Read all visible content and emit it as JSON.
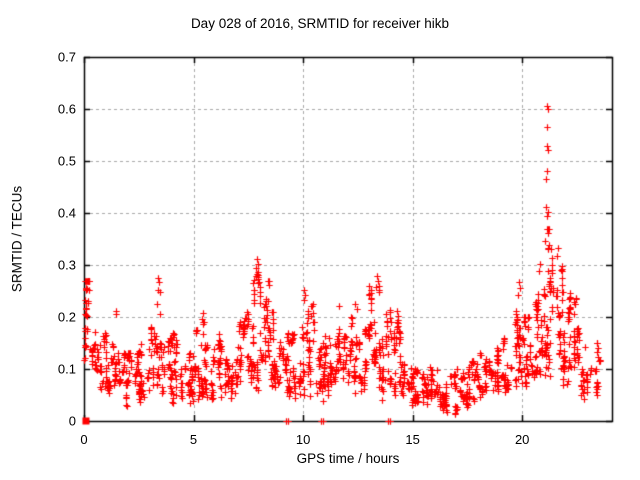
{
  "chart_data": {
    "type": "scatter",
    "title": "Day 028 of 2016, SRMTID for receiver hikb",
    "xlabel": "GPS time / hours",
    "ylabel": "SRMTID / TECUs",
    "xlim": [
      0,
      24.1
    ],
    "ylim": [
      0,
      0.7
    ],
    "xticks": [
      0,
      5,
      10,
      15,
      20
    ],
    "yticks": [
      0,
      0.1,
      0.2,
      0.3,
      0.4,
      0.5,
      0.6,
      0.7
    ],
    "grid": true,
    "legend": "none",
    "marker": "plus",
    "marker_color": "#ff0000",
    "grid_color": "#a8a8a8",
    "axis_color": "#000000",
    "background_color": "#ffffff",
    "seed": 20160128,
    "density_bins": [
      {
        "h0": 0.0,
        "h1": 0.25,
        "lo": 0.04,
        "hi": 0.27,
        "n": 28
      },
      {
        "h0": 0.25,
        "h1": 0.5,
        "lo": 0.09,
        "hi": 0.2,
        "n": 14
      },
      {
        "h0": 0.5,
        "h1": 1.0,
        "lo": 0.06,
        "hi": 0.17,
        "n": 34
      },
      {
        "h0": 1.0,
        "h1": 1.5,
        "lo": 0.06,
        "hi": 0.16,
        "n": 36
      },
      {
        "h0": 1.5,
        "h1": 2.0,
        "lo": 0.035,
        "hi": 0.13,
        "n": 36
      },
      {
        "h0": 2.0,
        "h1": 2.5,
        "lo": 0.05,
        "hi": 0.13,
        "n": 36
      },
      {
        "h0": 2.5,
        "h1": 3.0,
        "lo": 0.05,
        "hi": 0.16,
        "n": 36
      },
      {
        "h0": 3.0,
        "h1": 3.5,
        "lo": 0.06,
        "hi": 0.18,
        "n": 36
      },
      {
        "h0": 3.5,
        "h1": 4.0,
        "lo": 0.06,
        "hi": 0.16,
        "n": 36
      },
      {
        "h0": 4.0,
        "h1": 4.5,
        "lo": 0.05,
        "hi": 0.17,
        "n": 36
      },
      {
        "h0": 4.5,
        "h1": 5.0,
        "lo": 0.05,
        "hi": 0.14,
        "n": 36
      },
      {
        "h0": 5.0,
        "h1": 5.5,
        "lo": 0.06,
        "hi": 0.19,
        "n": 36
      },
      {
        "h0": 5.5,
        "h1": 6.0,
        "lo": 0.05,
        "hi": 0.15,
        "n": 36
      },
      {
        "h0": 6.0,
        "h1": 6.5,
        "lo": 0.06,
        "hi": 0.17,
        "n": 36
      },
      {
        "h0": 6.5,
        "h1": 7.0,
        "lo": 0.06,
        "hi": 0.18,
        "n": 36
      },
      {
        "h0": 7.0,
        "h1": 7.5,
        "lo": 0.07,
        "hi": 0.21,
        "n": 40
      },
      {
        "h0": 7.5,
        "h1": 8.0,
        "lo": 0.08,
        "hi": 0.29,
        "n": 46
      },
      {
        "h0": 8.0,
        "h1": 8.5,
        "lo": 0.08,
        "hi": 0.27,
        "n": 44
      },
      {
        "h0": 8.5,
        "h1": 9.0,
        "lo": 0.07,
        "hi": 0.21,
        "n": 40
      },
      {
        "h0": 9.0,
        "h1": 9.5,
        "lo": 0.06,
        "hi": 0.17,
        "n": 34
      },
      {
        "h0": 9.5,
        "h1": 10.0,
        "lo": 0.07,
        "hi": 0.18,
        "n": 36
      },
      {
        "h0": 10.0,
        "h1": 10.5,
        "lo": 0.07,
        "hi": 0.23,
        "n": 40
      },
      {
        "h0": 10.5,
        "h1": 11.0,
        "lo": 0.06,
        "hi": 0.19,
        "n": 36
      },
      {
        "h0": 11.0,
        "h1": 11.5,
        "lo": 0.06,
        "hi": 0.16,
        "n": 36
      },
      {
        "h0": 11.5,
        "h1": 12.0,
        "lo": 0.07,
        "hi": 0.18,
        "n": 36
      },
      {
        "h0": 12.0,
        "h1": 12.5,
        "lo": 0.06,
        "hi": 0.2,
        "n": 36
      },
      {
        "h0": 12.5,
        "h1": 13.0,
        "lo": 0.07,
        "hi": 0.19,
        "n": 38
      },
      {
        "h0": 13.0,
        "h1": 13.5,
        "lo": 0.08,
        "hi": 0.26,
        "n": 46
      },
      {
        "h0": 13.5,
        "h1": 14.0,
        "lo": 0.07,
        "hi": 0.22,
        "n": 40
      },
      {
        "h0": 14.0,
        "h1": 14.5,
        "lo": 0.06,
        "hi": 0.2,
        "n": 38
      },
      {
        "h0": 14.5,
        "h1": 15.0,
        "lo": 0.05,
        "hi": 0.13,
        "n": 34
      },
      {
        "h0": 15.0,
        "h1": 15.5,
        "lo": 0.04,
        "hi": 0.12,
        "n": 34
      },
      {
        "h0": 15.5,
        "h1": 16.0,
        "lo": 0.04,
        "hi": 0.11,
        "n": 34
      },
      {
        "h0": 16.0,
        "h1": 16.5,
        "lo": 0.03,
        "hi": 0.1,
        "n": 34
      },
      {
        "h0": 16.5,
        "h1": 17.0,
        "lo": 0.02,
        "hi": 0.09,
        "n": 34
      },
      {
        "h0": 17.0,
        "h1": 17.5,
        "lo": 0.03,
        "hi": 0.1,
        "n": 34
      },
      {
        "h0": 17.5,
        "h1": 18.0,
        "lo": 0.04,
        "hi": 0.12,
        "n": 34
      },
      {
        "h0": 18.0,
        "h1": 18.5,
        "lo": 0.05,
        "hi": 0.13,
        "n": 34
      },
      {
        "h0": 18.5,
        "h1": 19.0,
        "lo": 0.06,
        "hi": 0.15,
        "n": 34
      },
      {
        "h0": 19.0,
        "h1": 19.5,
        "lo": 0.06,
        "hi": 0.16,
        "n": 34
      },
      {
        "h0": 19.5,
        "h1": 20.0,
        "lo": 0.07,
        "hi": 0.22,
        "n": 40
      },
      {
        "h0": 20.0,
        "h1": 20.5,
        "lo": 0.08,
        "hi": 0.2,
        "n": 40
      },
      {
        "h0": 20.5,
        "h1": 21.0,
        "lo": 0.09,
        "hi": 0.26,
        "n": 46
      },
      {
        "h0": 21.0,
        "h1": 21.5,
        "lo": 0.1,
        "hi": 0.37,
        "n": 52
      },
      {
        "h0": 21.5,
        "h1": 22.0,
        "lo": 0.1,
        "hi": 0.3,
        "n": 46
      },
      {
        "h0": 22.0,
        "h1": 22.5,
        "lo": 0.08,
        "hi": 0.25,
        "n": 42
      },
      {
        "h0": 22.5,
        "h1": 23.0,
        "lo": 0.06,
        "hi": 0.19,
        "n": 36
      },
      {
        "h0": 23.0,
        "h1": 23.55,
        "lo": 0.06,
        "hi": 0.15,
        "n": 22
      }
    ],
    "notable_points": [
      [
        21.12,
        0.605
      ],
      [
        21.17,
        0.6
      ],
      [
        21.14,
        0.565
      ],
      [
        21.12,
        0.528
      ],
      [
        21.18,
        0.522
      ],
      [
        21.15,
        0.48
      ],
      [
        21.11,
        0.465
      ],
      [
        21.1,
        0.412
      ],
      [
        21.16,
        0.402
      ],
      [
        21.13,
        0.395
      ],
      [
        20.82,
        0.302
      ],
      [
        20.78,
        0.288
      ],
      [
        21.62,
        0.332
      ],
      [
        21.57,
        0.318
      ],
      [
        7.9,
        0.312
      ],
      [
        7.93,
        0.302
      ],
      [
        7.87,
        0.295
      ],
      [
        7.95,
        0.286
      ],
      [
        7.85,
        0.278
      ],
      [
        13.38,
        0.278
      ],
      [
        13.42,
        0.27
      ],
      [
        13.35,
        0.258
      ],
      [
        13.45,
        0.252
      ],
      [
        3.4,
        0.275
      ],
      [
        3.43,
        0.268
      ],
      [
        3.37,
        0.252
      ],
      [
        3.45,
        0.248
      ],
      [
        3.35,
        0.225
      ],
      [
        3.47,
        0.205
      ],
      [
        0.05,
        0.27
      ],
      [
        0.07,
        0.252
      ],
      [
        0.05,
        0.232
      ],
      [
        0.08,
        0.215
      ],
      [
        0.06,
        0.205
      ],
      [
        10.05,
        0.252
      ],
      [
        10.08,
        0.243
      ],
      [
        10.03,
        0.232
      ],
      [
        19.85,
        0.268
      ],
      [
        19.9,
        0.256
      ],
      [
        19.82,
        0.243
      ],
      [
        11.62,
        0.222
      ],
      [
        12.38,
        0.225
      ],
      [
        12.44,
        0.215
      ],
      [
        1.44,
        0.212
      ],
      [
        1.47,
        0.205
      ],
      [
        5.42,
        0.208
      ],
      [
        5.38,
        0.196
      ],
      [
        14.28,
        0.212
      ],
      [
        14.33,
        0.202
      ]
    ],
    "zero_points": [
      [
        9.22,
        0
      ],
      [
        9.3,
        0
      ],
      [
        10.82,
        0
      ],
      [
        10.92,
        0
      ],
      [
        13.88,
        0
      ],
      [
        13.97,
        0
      ]
    ],
    "origin_cluster": {
      "x": 0.09,
      "y": 0
    }
  }
}
